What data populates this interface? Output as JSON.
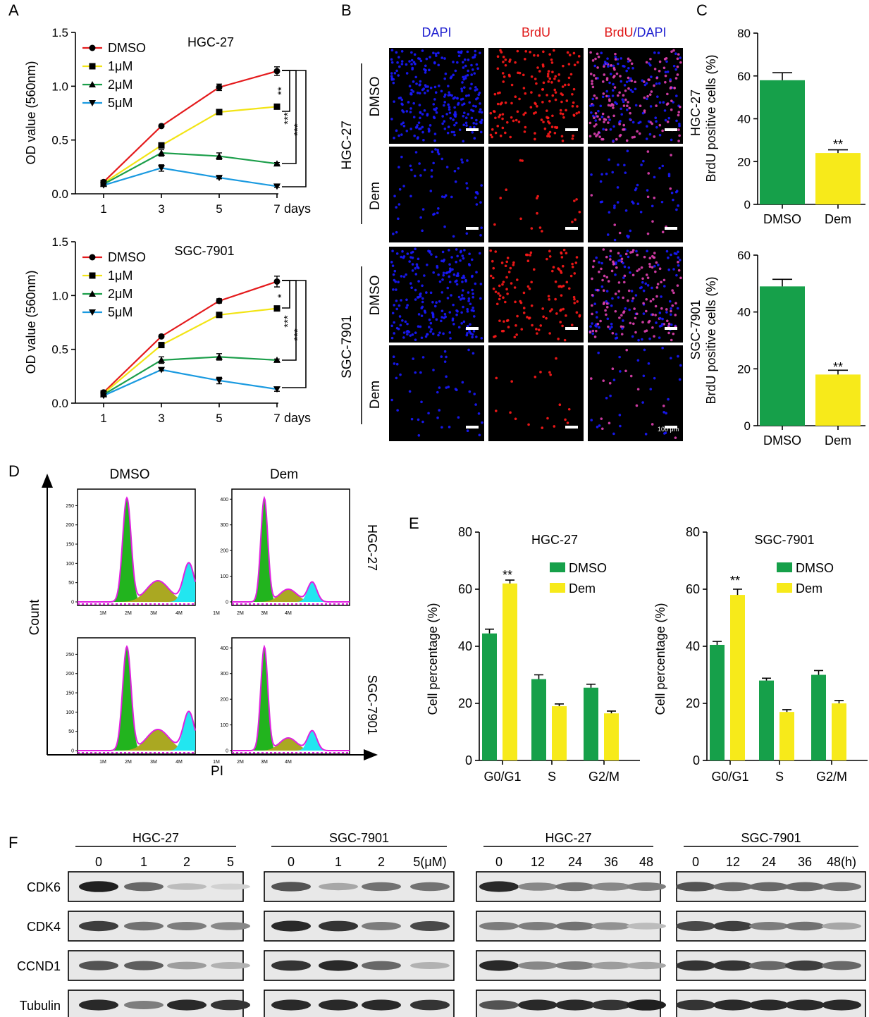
{
  "panels": {
    "A": {
      "letter": "A",
      "top": {
        "cell": "HGC-27",
        "ylabel": "OD value (560nm)",
        "x_unit": "days",
        "legend": [
          "DMSO",
          "1μM",
          "2μM",
          "5μM"
        ],
        "sig": [
          "**",
          "***",
          "***"
        ]
      },
      "bottom": {
        "cell": "SGC-7901",
        "ylabel": "OD value (560nm)",
        "x_unit": "days",
        "legend": [
          "DMSO",
          "1μM",
          "2μM",
          "5μM"
        ],
        "sig": [
          "*",
          "***",
          "***"
        ]
      }
    },
    "B": {
      "letter": "B",
      "columns": [
        "DAPI",
        "BrdU",
        "BrdU",
        "/DAPI"
      ],
      "cells": [
        "HGC-27",
        "SGC-7901"
      ],
      "rows": [
        "DMSO",
        "Dem",
        "DMSO",
        "Dem"
      ],
      "scale": "100 μm"
    },
    "C": {
      "letter": "C",
      "top": {
        "cell": "HGC-27",
        "ylabel": "BrdU positive cells (%)",
        "sig": "**"
      },
      "bottom": {
        "cell": "SGC-7901",
        "ylabel": "BrdU positive cells (%)",
        "sig": "**"
      }
    },
    "D": {
      "letter": "D",
      "cols": [
        "DMSO",
        "Dem"
      ],
      "rows": [
        "HGC-27",
        "SGC-7901"
      ],
      "xlabel": "PI",
      "ylabel": "Count",
      "x_ticks": [
        "1M",
        "2M",
        "3M",
        "4M"
      ],
      "y_ticks_dmso": [
        "0",
        "50",
        "100",
        "150",
        "200",
        "250"
      ],
      "y_ticks_dem": [
        "0",
        "100",
        "200",
        "300",
        "400"
      ]
    },
    "E": {
      "letter": "E",
      "ylabel": "Cell percentage (%)",
      "left": {
        "title": "HGC-27",
        "sig": "**"
      },
      "right": {
        "title": "SGC-7901",
        "sig": "**"
      },
      "legend": [
        "DMSO",
        "Dem"
      ]
    },
    "F": {
      "letter": "F",
      "groups": [
        {
          "cell": "HGC-27",
          "lanes": [
            "0",
            "1",
            "2",
            "5"
          ]
        },
        {
          "cell": "SGC-7901",
          "lanes": [
            "0",
            "1",
            "2",
            "5(μM)"
          ]
        },
        {
          "cell": "HGC-27",
          "lanes": [
            "0",
            "12",
            "24",
            "36",
            "48"
          ]
        },
        {
          "cell": "SGC-7901",
          "lanes": [
            "0",
            "12",
            "24",
            "36",
            "48(h)"
          ]
        }
      ],
      "proteins": [
        "CDK6",
        "CDK4",
        "CCND1",
        "Tubulin"
      ]
    }
  },
  "colors": {
    "dmso": "#e41a1c",
    "um1": "#f2e415",
    "um2": "#1b9e4a",
    "um5": "#1a9ae0",
    "bar_dmso": "#16a04a",
    "bar_dem": "#f7ea1a",
    "dapi": "#1a1aff",
    "brdu": "#ff1a1a"
  },
  "chart_data": [
    {
      "type": "line",
      "title": "HGC-27",
      "xlabel": "days",
      "ylabel": "OD value (560nm)",
      "x": [
        1,
        3,
        5,
        7
      ],
      "ylim": [
        0,
        1.5
      ],
      "y_ticks": [
        "0.0",
        "0.5",
        "1.0",
        "1.5"
      ],
      "series": [
        {
          "name": "DMSO",
          "values": [
            0.11,
            0.63,
            0.99,
            1.14
          ],
          "err": [
            0.01,
            0.01,
            0.03,
            0.04
          ]
        },
        {
          "name": "1μM",
          "values": [
            0.1,
            0.45,
            0.76,
            0.81
          ],
          "err": [
            0.01,
            0.02,
            0.02,
            0.02
          ]
        },
        {
          "name": "2μM",
          "values": [
            0.09,
            0.38,
            0.35,
            0.28
          ],
          "err": [
            0.01,
            0.03,
            0.03,
            0.01
          ]
        },
        {
          "name": "5μM",
          "values": [
            0.08,
            0.24,
            0.15,
            0.07
          ],
          "err": [
            0.01,
            0.03,
            0.01,
            0.01
          ]
        }
      ]
    },
    {
      "type": "line",
      "title": "SGC-7901",
      "xlabel": "days",
      "ylabel": "OD value (560nm)",
      "x": [
        1,
        3,
        5,
        7
      ],
      "ylim": [
        0,
        1.5
      ],
      "y_ticks": [
        "0.0",
        "0.5",
        "1.0",
        "1.5"
      ],
      "series": [
        {
          "name": "DMSO",
          "values": [
            0.1,
            0.62,
            0.95,
            1.13
          ],
          "err": [
            0.01,
            0.01,
            0.02,
            0.05
          ]
        },
        {
          "name": "1μM",
          "values": [
            0.09,
            0.54,
            0.82,
            0.88
          ],
          "err": [
            0.01,
            0.02,
            0.02,
            0.02
          ]
        },
        {
          "name": "2μM",
          "values": [
            0.08,
            0.4,
            0.43,
            0.4
          ],
          "err": [
            0.01,
            0.03,
            0.03,
            0.01
          ]
        },
        {
          "name": "5μM",
          "values": [
            0.07,
            0.31,
            0.21,
            0.13
          ],
          "err": [
            0.01,
            0.01,
            0.03,
            0.02
          ]
        }
      ]
    },
    {
      "type": "bar",
      "title": "HGC-27",
      "ylabel": "BrdU positive cells (%)",
      "categories": [
        "DMSO",
        "Dem"
      ],
      "values": [
        58,
        24
      ],
      "err": [
        3.5,
        1.5
      ],
      "ylim": [
        0,
        80
      ],
      "y_ticks": [
        "0",
        "20",
        "40",
        "60",
        "80"
      ]
    },
    {
      "type": "bar",
      "title": "SGC-7901",
      "ylabel": "BrdU positive cells (%)",
      "categories": [
        "DMSO",
        "Dem"
      ],
      "values": [
        49,
        18
      ],
      "err": [
        2.5,
        1.5
      ],
      "ylim": [
        0,
        60
      ],
      "y_ticks": [
        "0",
        "20",
        "40",
        "60"
      ]
    },
    {
      "type": "bar",
      "title": "HGC-27",
      "ylabel": "Cell percentage (%)",
      "categories": [
        "G0/G1",
        "S",
        "G2/M"
      ],
      "ylim": [
        0,
        80
      ],
      "y_ticks": [
        "0",
        "20",
        "40",
        "60",
        "80"
      ],
      "series": [
        {
          "name": "DMSO",
          "values": [
            44.5,
            28.5,
            25.5
          ],
          "err": [
            1.5,
            1.5,
            1.2
          ]
        },
        {
          "name": "Dem",
          "values": [
            62,
            19,
            16.5
          ],
          "err": [
            1.2,
            0.8,
            0.8
          ]
        }
      ]
    },
    {
      "type": "bar",
      "title": "SGC-7901",
      "ylabel": "Cell percentage (%)",
      "categories": [
        "G0/G1",
        "S",
        "G2/M"
      ],
      "ylim": [
        0,
        80
      ],
      "y_ticks": [
        "0",
        "20",
        "40",
        "60",
        "80"
      ],
      "series": [
        {
          "name": "DMSO",
          "values": [
            40.5,
            28,
            30
          ],
          "err": [
            1.2,
            0.8,
            1.5
          ]
        },
        {
          "name": "Dem",
          "values": [
            58,
            17,
            20
          ],
          "err": [
            2,
            0.8,
            1
          ]
        }
      ]
    }
  ]
}
